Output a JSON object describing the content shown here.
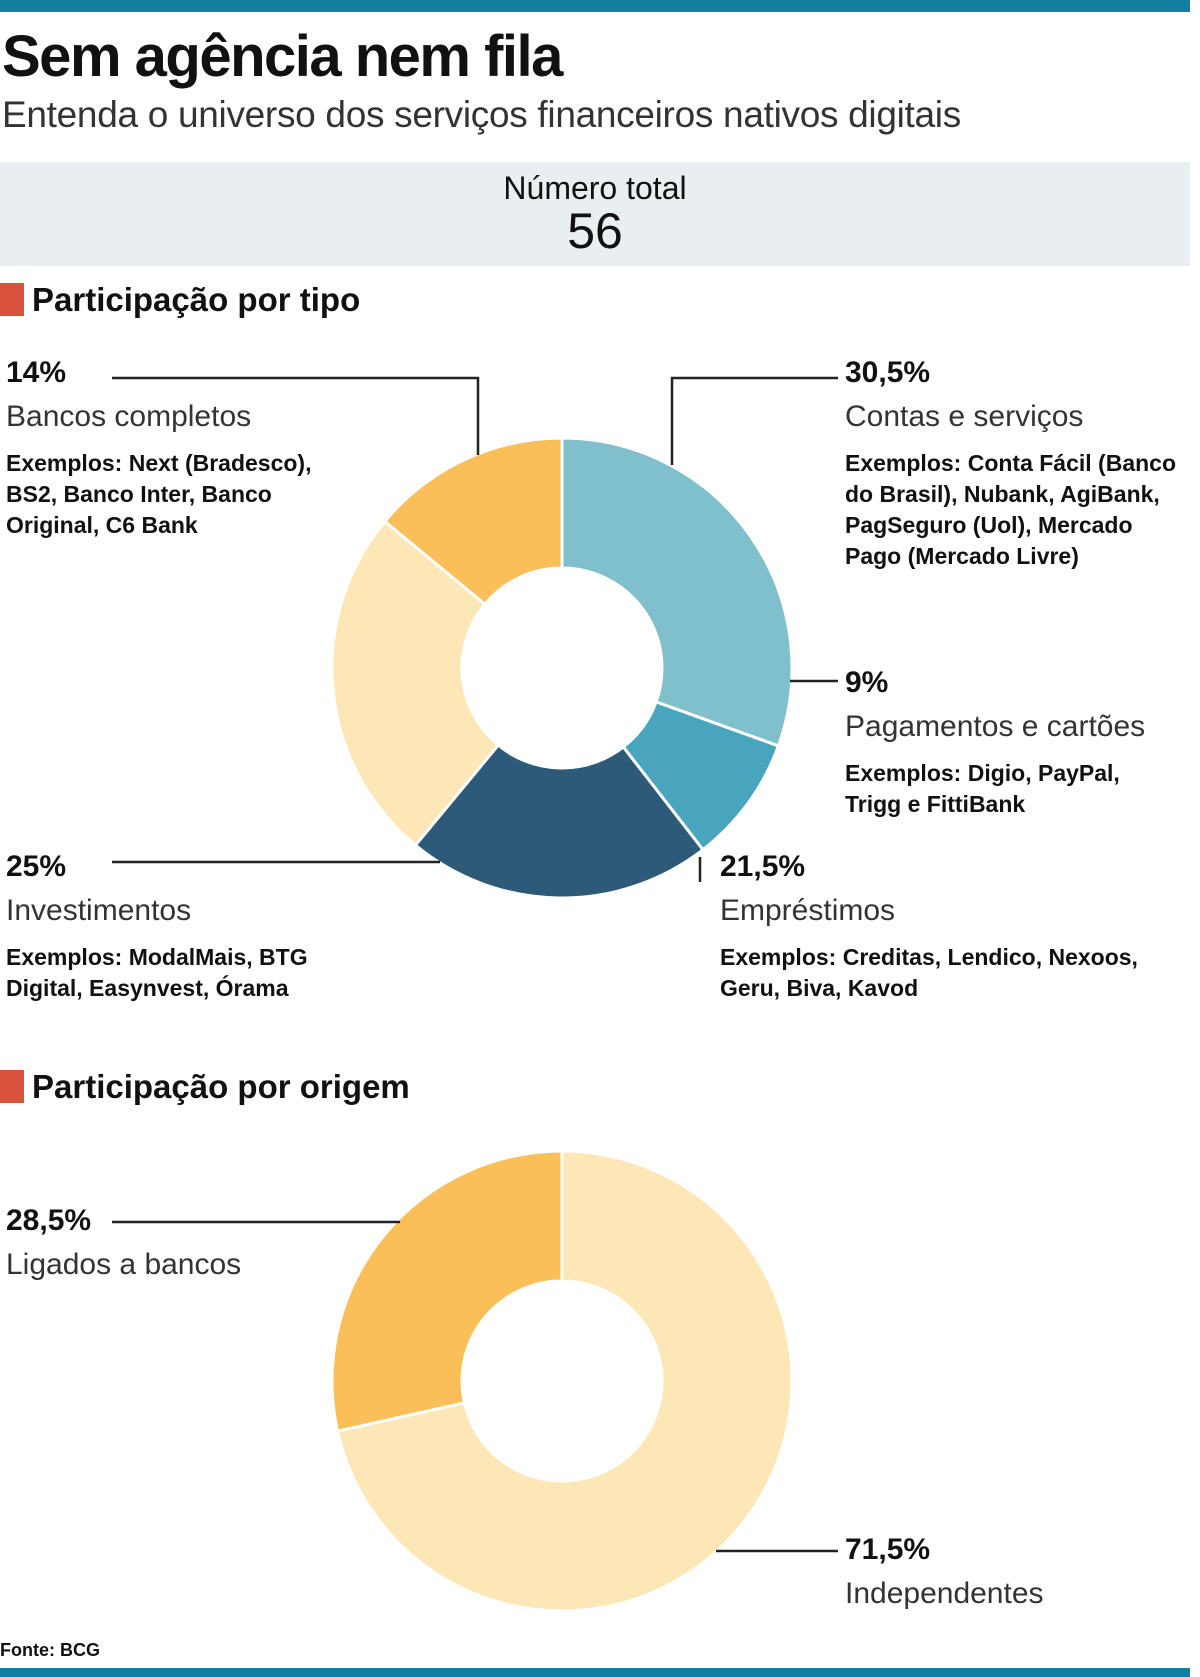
{
  "header": {
    "title": "Sem agência nem fila",
    "subtitle": "Entenda o universo dos serviços financeiros nativos digitais"
  },
  "total": {
    "label": "Número total",
    "value": "56"
  },
  "sections": {
    "tipo": "Participação por tipo",
    "origem": "Participação por origem"
  },
  "source": "Fonte: BCG",
  "colors": {
    "accent_bar": "#137fa0",
    "section_marker": "#d9513c",
    "contas": "#80bfcc",
    "pagamentos": "#49a5bd",
    "emprestimos": "#2d5a78",
    "investimentos": "#fde7b6",
    "bancos": "#fbbf5a",
    "independentes": "#fde7b6",
    "ligados": "#fbbf5a"
  },
  "chart_data": [
    {
      "type": "pie",
      "title": "Participação por tipo",
      "variant": "donut",
      "unit": "%",
      "slices": [
        {
          "key": "contas",
          "label": "Contas e serviços",
          "value": 30.5,
          "display": "30,5%",
          "examples": [
            "Exemplos:  Conta Fácil (Banco",
            "do Brasil), Nubank, AgiBank,",
            "PagSeguro (Uol), Mercado",
            "Pago (Mercado Livre)"
          ]
        },
        {
          "key": "pagamentos",
          "label": "Pagamentos e cartões",
          "value": 9,
          "display": "9%",
          "examples": [
            "Exemplos: Digio, PayPal,",
            "Trigg e FittiBank"
          ]
        },
        {
          "key": "emprestimos",
          "label": "Empréstimos",
          "value": 21.5,
          "display": "21,5%",
          "examples": [
            "Exemplos: Creditas, Lendico, Nexoos,",
            "Geru, Biva, Kavod"
          ]
        },
        {
          "key": "investimentos",
          "label": "Investimentos",
          "value": 25,
          "display": "25%",
          "examples": [
            "Exemplos: ModalMais, BTG",
            "Digital, Easynvest, Órama"
          ]
        },
        {
          "key": "bancos",
          "label": "Bancos completos",
          "value": 14,
          "display": "14%",
          "examples": [
            "Exemplos: Next (Bradesco),",
            "BS2, Banco Inter, Banco",
            "Original, C6 Bank"
          ]
        }
      ]
    },
    {
      "type": "pie",
      "title": "Participação por origem",
      "variant": "donut",
      "unit": "%",
      "slices": [
        {
          "key": "independentes",
          "label": "Independentes",
          "value": 71.5,
          "display": "71,5%"
        },
        {
          "key": "ligados",
          "label": "Ligados a bancos",
          "value": 28.5,
          "display": "28,5%"
        }
      ]
    }
  ]
}
